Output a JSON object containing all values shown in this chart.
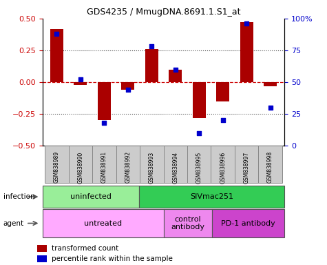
{
  "title": "GDS4235 / MmugDNA.8691.1.S1_at",
  "samples": [
    "GSM838989",
    "GSM838990",
    "GSM838991",
    "GSM838992",
    "GSM838993",
    "GSM838994",
    "GSM838995",
    "GSM838996",
    "GSM838997",
    "GSM838998"
  ],
  "bar_values": [
    0.42,
    -0.02,
    -0.3,
    -0.06,
    0.26,
    0.1,
    -0.28,
    -0.15,
    0.47,
    -0.03
  ],
  "scatter_pct": [
    88,
    52,
    18,
    44,
    78,
    60,
    10,
    20,
    96,
    30
  ],
  "bar_color": "#aa0000",
  "scatter_color": "#0000cc",
  "ylim": [
    -0.5,
    0.5
  ],
  "y2lim": [
    0,
    100
  ],
  "yticks": [
    -0.5,
    -0.25,
    0,
    0.25,
    0.5
  ],
  "y2ticks": [
    0,
    25,
    50,
    75,
    100
  ],
  "hline_color": "#cc0000",
  "dotted_color": "#555555",
  "infection_labels": [
    {
      "label": "uninfected",
      "start": 0,
      "end": 3,
      "color": "#99ee99"
    },
    {
      "label": "SIVmac251",
      "start": 4,
      "end": 9,
      "color": "#33cc55"
    }
  ],
  "agent_labels": [
    {
      "label": "untreated",
      "start": 0,
      "end": 4,
      "color": "#ffaaff"
    },
    {
      "label": "control\nantibody",
      "start": 5,
      "end": 6,
      "color": "#ee88ee"
    },
    {
      "label": "PD-1 antibody",
      "start": 7,
      "end": 9,
      "color": "#cc44cc"
    }
  ],
  "legend_items": [
    {
      "label": "transformed count",
      "color": "#aa0000"
    },
    {
      "label": "percentile rank within the sample",
      "color": "#0000cc"
    }
  ],
  "infection_row_label": "infection",
  "agent_row_label": "agent",
  "sample_box_color": "#cccccc",
  "sample_box_edge": "#888888",
  "bg_color": "#ffffff",
  "tick_label_color_left": "#cc0000",
  "tick_label_color_right": "#0000cc"
}
